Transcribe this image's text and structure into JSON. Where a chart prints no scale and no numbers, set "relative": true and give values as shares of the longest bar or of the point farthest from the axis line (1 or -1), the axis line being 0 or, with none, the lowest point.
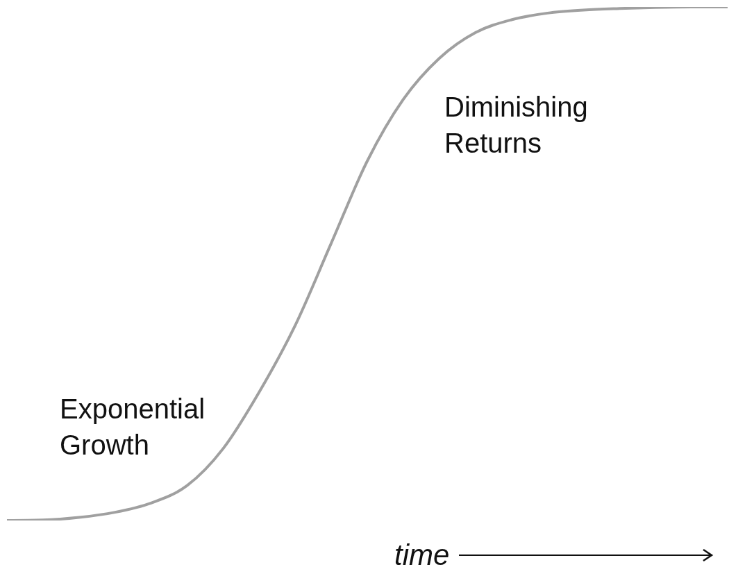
{
  "chart_data": {
    "type": "line",
    "relative": true,
    "xlabel": "time",
    "annotations": [
      "Exponential Growth",
      "Diminishing Returns"
    ],
    "categories": [
      null,
      null,
      null,
      null,
      null,
      null,
      null,
      null,
      null,
      null,
      null,
      null,
      null,
      null,
      null,
      null,
      null,
      null,
      null,
      null,
      null
    ],
    "series": [
      {
        "color": "#a0a0a0",
        "values": [
          0,
          0.001,
          0.006,
          0.016,
          0.034,
          0.068,
          0.14,
          0.25,
          0.38,
          0.54,
          0.7,
          0.82,
          0.9,
          0.95,
          0.975,
          0.988,
          0.994,
          0.997,
          0.999,
          1,
          1
        ]
      }
    ],
    "marker": "none",
    "line_style": "solid"
  }
}
